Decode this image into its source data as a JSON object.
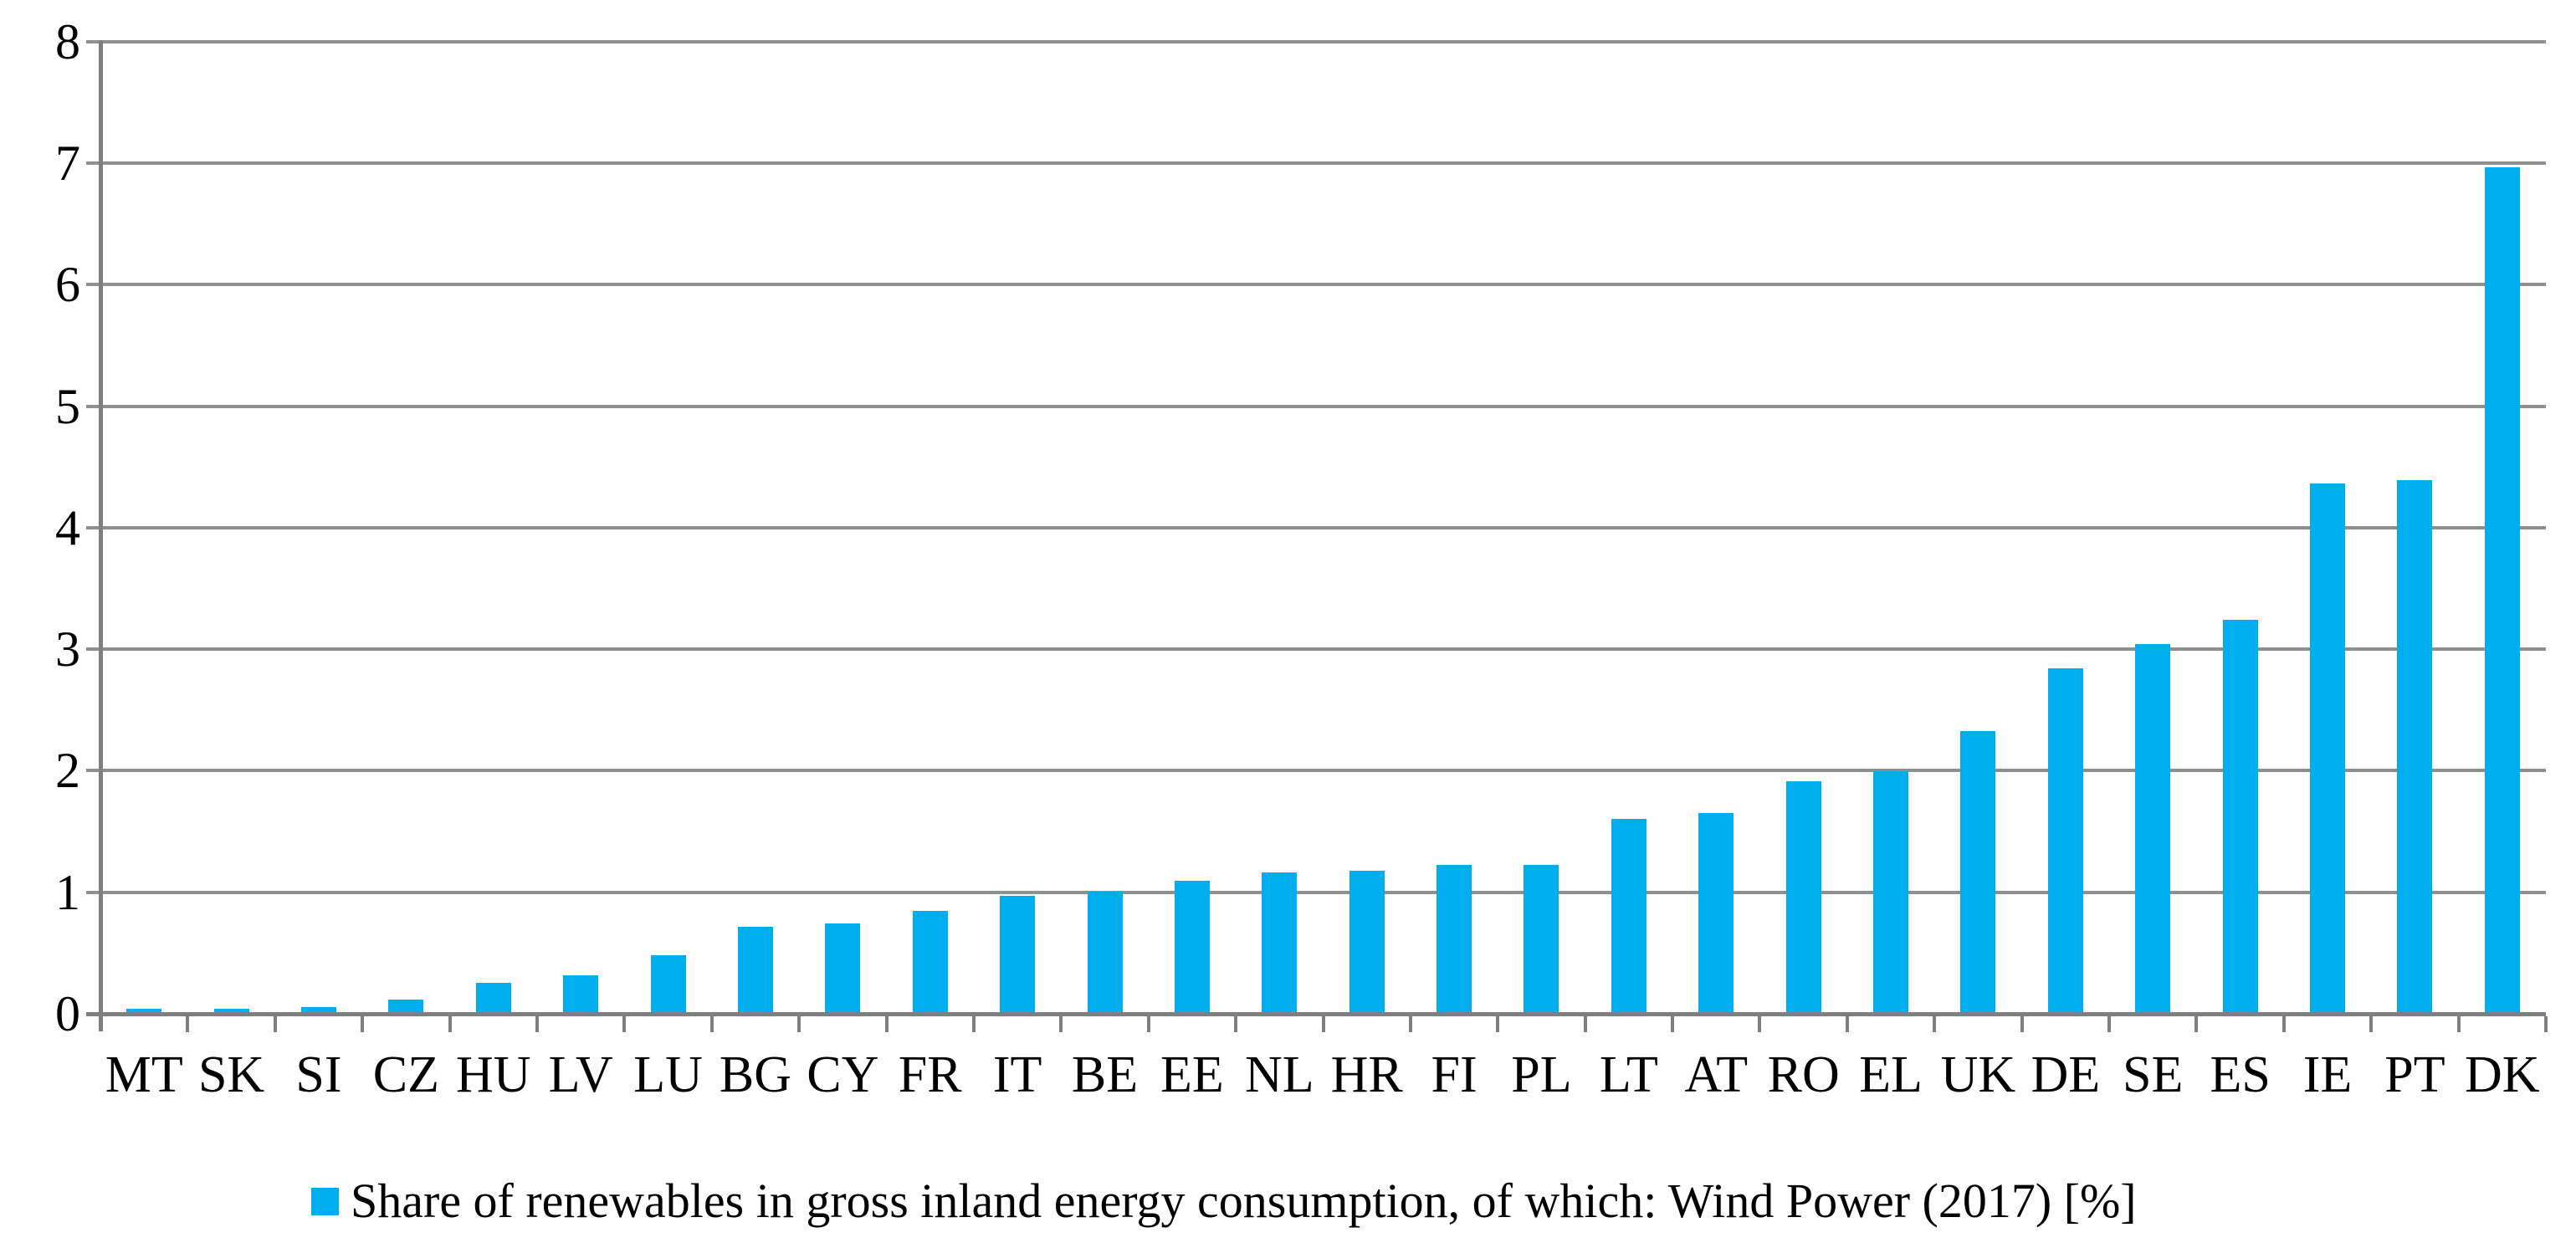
{
  "chart_data": {
    "type": "bar",
    "title": "",
    "xlabel": "",
    "ylabel": "",
    "categories": [
      "MT",
      "SK",
      "SI",
      "CZ",
      "HU",
      "LV",
      "LU",
      "BG",
      "CY",
      "FR",
      "IT",
      "BE",
      "EE",
      "NL",
      "HR",
      "FI",
      "PL",
      "LT",
      "AT",
      "RO",
      "EL",
      "UK",
      "DE",
      "SE",
      "ES",
      "IE",
      "PT",
      "DK"
    ],
    "values": [
      0.03,
      0.03,
      0.04,
      0.1,
      0.24,
      0.3,
      0.47,
      0.7,
      0.73,
      0.83,
      0.96,
      0.99,
      1.08,
      1.15,
      1.16,
      1.21,
      1.21,
      1.59,
      1.64,
      1.9,
      1.98,
      2.31,
      2.83,
      3.03,
      3.23,
      4.35,
      4.38,
      6.95
    ],
    "legend": "Share of renewables in gross inland energy consumption, of which: Wind Power (2017) [%]",
    "legend_position": "bottom",
    "ylim": [
      0,
      8
    ],
    "yticks": [
      0,
      1,
      2,
      3,
      4,
      5,
      6,
      7,
      8
    ],
    "grid": true,
    "bar_color": "#00AEEF",
    "gridline_color": "#8F8F8F",
    "axis_color": "#7F7F7F",
    "text_color": "#000000",
    "background_color": "#FFFFFF"
  }
}
